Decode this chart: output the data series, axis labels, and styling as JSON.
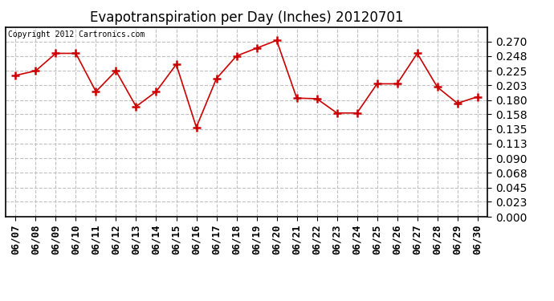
{
  "title": "Evapotranspiration per Day (Inches) 20120701",
  "copyright_text": "Copyright 2012 Cartronics.com",
  "dates": [
    "06/07",
    "06/08",
    "06/09",
    "06/10",
    "06/11",
    "06/12",
    "06/13",
    "06/14",
    "06/15",
    "06/16",
    "06/17",
    "06/18",
    "06/19",
    "06/20",
    "06/21",
    "06/22",
    "06/23",
    "06/24",
    "06/25",
    "06/26",
    "06/27",
    "06/28",
    "06/29",
    "06/30"
  ],
  "values": [
    0.218,
    0.225,
    0.252,
    0.252,
    0.193,
    0.225,
    0.17,
    0.193,
    0.235,
    0.138,
    0.213,
    0.248,
    0.26,
    0.272,
    0.183,
    0.182,
    0.16,
    0.16,
    0.205,
    0.205,
    0.252,
    0.2,
    0.175,
    0.185
  ],
  "line_color": "#cc0000",
  "marker": "+",
  "marker_color": "#cc0000",
  "bg_color": "#ffffff",
  "plot_bg_color": "#ffffff",
  "grid_color": "#c0c0c0",
  "ylim": [
    0.0,
    0.2925
  ],
  "yticks": [
    0.0,
    0.023,
    0.045,
    0.068,
    0.09,
    0.113,
    0.135,
    0.158,
    0.18,
    0.203,
    0.225,
    0.248,
    0.27
  ],
  "title_fontsize": 12,
  "copyright_fontsize": 7,
  "tick_fontsize": 9,
  "ytick_fontsize": 10,
  "border_color": "#000000"
}
